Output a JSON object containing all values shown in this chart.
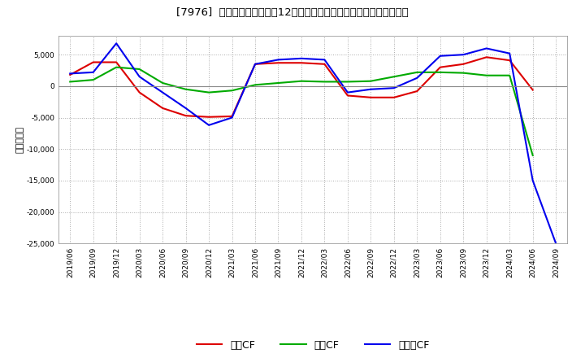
{
  "title": "[7976]  キャッシュフローの12か月移動合計の対前年同期増減額の推移",
  "ylabel": "（百万円）",
  "background_color": "#ffffff",
  "plot_background_color": "#ffffff",
  "grid_color": "#aaaaaa",
  "ylim": [
    -25000,
    8000
  ],
  "yticks": [
    5000,
    0,
    -5000,
    -10000,
    -15000,
    -20000,
    -25000
  ],
  "x_labels": [
    "2019/06",
    "2019/09",
    "2019/12",
    "2020/03",
    "2020/06",
    "2020/09",
    "2020/12",
    "2021/03",
    "2021/06",
    "2021/09",
    "2021/12",
    "2022/03",
    "2022/06",
    "2022/09",
    "2022/12",
    "2023/03",
    "2023/06",
    "2023/09",
    "2023/12",
    "2024/03",
    "2024/06",
    "2024/09"
  ],
  "営業CF": [
    1800,
    3800,
    3800,
    -1000,
    -3500,
    -4700,
    -4900,
    -4800,
    3500,
    3700,
    3700,
    3500,
    -1500,
    -1800,
    -1800,
    -800,
    3000,
    3500,
    4600,
    4100,
    -600,
    null
  ],
  "投資CF": [
    700,
    1000,
    3000,
    2700,
    500,
    -500,
    -1000,
    -700,
    200,
    500,
    800,
    700,
    700,
    800,
    1500,
    2200,
    2200,
    2100,
    1700,
    1700,
    -11000,
    null
  ],
  "フリーCF": [
    2000,
    2200,
    6800,
    1500,
    -1000,
    -3500,
    -6200,
    -5000,
    3500,
    4200,
    4400,
    4200,
    -1000,
    -500,
    -300,
    1300,
    4800,
    5000,
    6000,
    5200,
    -15000,
    -25000
  ],
  "line_colors": {
    "営業CF": "#dd0000",
    "投資CF": "#00aa00",
    "フリーCF": "#0000ee"
  },
  "legend_labels": [
    "営業CF",
    "投資CF",
    "フリーCF"
  ],
  "line_width": 1.5
}
